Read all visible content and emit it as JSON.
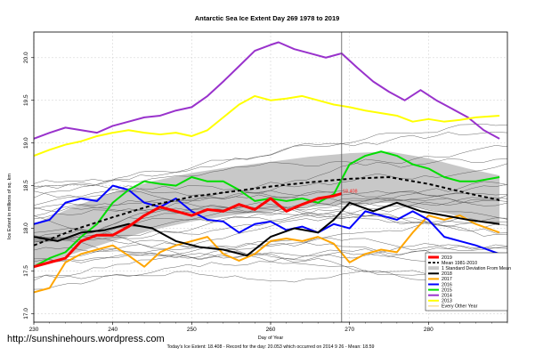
{
  "chart_data": {
    "type": "line",
    "title": "Antarctic Sea Ice Extent Day 269 1978 to 2019",
    "xlabel": "Day of Year",
    "ylabel": "Ice Extent in millions of sq. km",
    "xlim": [
      230,
      290
    ],
    "ylim": [
      16.9,
      20.3
    ],
    "x_ticks": [
      230,
      240,
      250,
      260,
      270,
      280
    ],
    "y_ticks": [
      17.0,
      17.5,
      18.0,
      18.5,
      19.0,
      19.5,
      20.0
    ],
    "grid": true,
    "vline_day": 269,
    "current_label": "18.408",
    "legend_position": "bottom-right",
    "band": {
      "x": [
        230,
        235,
        240,
        245,
        250,
        255,
        260,
        265,
        270,
        275,
        280,
        285,
        289
      ],
      "upper": [
        18.05,
        18.25,
        18.42,
        18.55,
        18.65,
        18.72,
        18.78,
        18.84,
        18.88,
        18.9,
        18.82,
        18.7,
        18.62
      ],
      "lower": [
        17.55,
        17.7,
        17.85,
        17.98,
        18.08,
        18.15,
        18.2,
        18.25,
        18.28,
        18.3,
        18.22,
        18.12,
        18.05
      ]
    },
    "series": [
      {
        "name": "2019",
        "color": "#ff0000",
        "width": 3,
        "x": [
          230,
          232,
          234,
          236,
          238,
          240,
          242,
          244,
          246,
          248,
          250,
          252,
          254,
          256,
          258,
          260,
          262,
          264,
          266,
          268,
          269
        ],
        "y": [
          17.55,
          17.6,
          17.65,
          17.85,
          17.92,
          17.92,
          18.02,
          18.15,
          18.25,
          18.2,
          18.15,
          18.22,
          18.2,
          18.28,
          18.22,
          18.35,
          18.2,
          18.28,
          18.35,
          18.38,
          18.408
        ]
      },
      {
        "name": "Mean 1981-2010",
        "color": "#000000",
        "width": 2,
        "dash": "4,3",
        "x": [
          230,
          235,
          240,
          245,
          250,
          255,
          260,
          265,
          270,
          275,
          280,
          285,
          289
        ],
        "y": [
          17.8,
          17.98,
          18.13,
          18.27,
          18.37,
          18.43,
          18.49,
          18.54,
          18.58,
          18.6,
          18.52,
          18.41,
          18.33
        ]
      },
      {
        "name": "2018",
        "color": "#000000",
        "width": 2,
        "x": [
          230,
          233,
          236,
          239,
          242,
          245,
          248,
          251,
          254,
          257,
          260,
          263,
          266,
          268,
          270,
          273,
          276,
          279,
          282,
          285,
          289
        ],
        "y": [
          17.9,
          17.85,
          17.95,
          17.98,
          18.05,
          18.0,
          17.85,
          17.78,
          17.75,
          17.68,
          17.9,
          18.0,
          17.95,
          18.1,
          18.3,
          18.2,
          18.3,
          18.2,
          18.15,
          18.1,
          18.05
        ]
      },
      {
        "name": "2017",
        "color": "#ffa500",
        "width": 2,
        "x": [
          230,
          232,
          234,
          236,
          238,
          240,
          242,
          244,
          246,
          248,
          250,
          252,
          254,
          256,
          258,
          260,
          262,
          264,
          266,
          268,
          270,
          272,
          274,
          276,
          278,
          280,
          282,
          284,
          286,
          289
        ],
        "y": [
          17.25,
          17.3,
          17.6,
          17.7,
          17.75,
          17.8,
          17.68,
          17.55,
          17.72,
          17.8,
          17.85,
          17.9,
          17.7,
          17.62,
          17.7,
          17.85,
          17.88,
          17.85,
          17.9,
          17.82,
          17.6,
          17.7,
          17.75,
          17.72,
          17.95,
          18.15,
          18.1,
          18.15,
          18.05,
          17.95
        ]
      },
      {
        "name": "2016",
        "color": "#0000ff",
        "width": 2,
        "x": [
          230,
          232,
          234,
          236,
          238,
          240,
          242,
          244,
          246,
          248,
          250,
          252,
          254,
          256,
          258,
          260,
          262,
          264,
          266,
          268,
          270,
          272,
          274,
          276,
          278,
          280,
          282,
          284,
          286,
          289
        ],
        "y": [
          18.05,
          18.1,
          18.3,
          18.35,
          18.32,
          18.5,
          18.45,
          18.3,
          18.25,
          18.35,
          18.2,
          18.1,
          18.08,
          17.95,
          18.05,
          18.08,
          17.98,
          18.02,
          17.95,
          18.05,
          18.0,
          18.2,
          18.15,
          18.1,
          18.2,
          18.1,
          17.9,
          17.85,
          17.8,
          17.7
        ]
      },
      {
        "name": "2015",
        "color": "#00dd00",
        "width": 2,
        "x": [
          230,
          232,
          234,
          236,
          238,
          240,
          242,
          244,
          246,
          248,
          250,
          252,
          254,
          256,
          258,
          260,
          262,
          264,
          266,
          268,
          270,
          272,
          274,
          276,
          278,
          280,
          282,
          284,
          286,
          289
        ],
        "y": [
          17.55,
          17.65,
          17.72,
          17.9,
          18.05,
          18.3,
          18.45,
          18.55,
          18.52,
          18.5,
          18.6,
          18.55,
          18.55,
          18.45,
          18.32,
          18.35,
          18.32,
          18.35,
          18.3,
          18.4,
          18.75,
          18.85,
          18.9,
          18.85,
          18.75,
          18.7,
          18.6,
          18.55,
          18.55,
          18.6
        ]
      },
      {
        "name": "2014",
        "color": "#9932cc",
        "width": 2,
        "x": [
          230,
          232,
          234,
          236,
          238,
          240,
          242,
          244,
          246,
          248,
          250,
          252,
          254,
          256,
          258,
          260,
          261,
          263,
          265,
          267,
          269,
          271,
          273,
          275,
          277,
          279,
          281,
          283,
          285,
          287,
          289
        ],
        "y": [
          19.05,
          19.12,
          19.18,
          19.15,
          19.12,
          19.2,
          19.25,
          19.3,
          19.32,
          19.38,
          19.42,
          19.55,
          19.72,
          19.9,
          20.08,
          20.15,
          20.18,
          20.1,
          20.05,
          20.0,
          20.05,
          19.88,
          19.72,
          19.6,
          19.5,
          19.62,
          19.5,
          19.4,
          19.3,
          19.15,
          19.05
        ]
      },
      {
        "name": "2013",
        "color": "#ffff00",
        "width": 2,
        "x": [
          230,
          232,
          234,
          236,
          238,
          240,
          242,
          244,
          246,
          248,
          250,
          252,
          254,
          256,
          258,
          260,
          262,
          264,
          266,
          268,
          270,
          272,
          274,
          276,
          278,
          280,
          282,
          284,
          286,
          289
        ],
        "y": [
          18.85,
          18.92,
          18.98,
          19.02,
          19.08,
          19.12,
          19.15,
          19.12,
          19.1,
          19.12,
          19.08,
          19.15,
          19.3,
          19.45,
          19.55,
          19.5,
          19.52,
          19.55,
          19.5,
          19.45,
          19.42,
          19.38,
          19.35,
          19.32,
          19.25,
          19.28,
          19.25,
          19.27,
          19.3,
          19.32
        ]
      }
    ],
    "legend_extra": [
      "1 Standard Deviation From Mean",
      "Every Other Year"
    ]
  },
  "watermark": "http://sunshinehours.wordpress.com",
  "footer": "Today's Ice Extent: 18.408  - Record for the day: 20.053 which occurred on 2014 9 26  - Mean: 18.59",
  "colors": {
    "background": "#ffffff",
    "band": "#c8c8c8",
    "thin_lines": "#555555"
  }
}
